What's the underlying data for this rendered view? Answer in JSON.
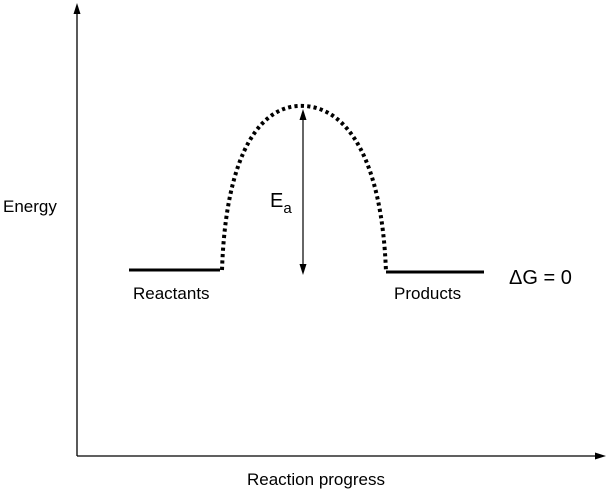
{
  "axes": {
    "y_label": "Energy",
    "x_label": "Reaction progress"
  },
  "levels": {
    "reactants_label": "Reactants",
    "products_label": "Products",
    "delta_g_label": "ΔG = 0"
  },
  "activation_energy": {
    "symbol": "E",
    "subscript": "a"
  },
  "colors": {
    "ink": "#000000",
    "background": "#ffffff"
  }
}
